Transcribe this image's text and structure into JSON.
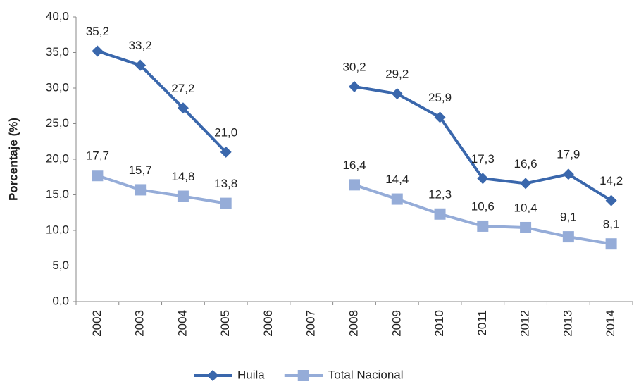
{
  "chart_data": {
    "type": "line",
    "ylabel": "Porcentaje (%)",
    "categories": [
      "2002",
      "2003",
      "2004",
      "2005",
      "2006",
      "2007",
      "2008",
      "2009",
      "2010",
      "2011",
      "2012",
      "2013",
      "2014"
    ],
    "series": [
      {
        "name": "Huila",
        "color": "#3a67ac",
        "marker": "diamond",
        "values": [
          35.2,
          33.2,
          27.2,
          21.0,
          null,
          null,
          30.2,
          29.2,
          25.9,
          17.3,
          16.6,
          17.9,
          14.2
        ],
        "value_labels": [
          "35,2",
          "33,2",
          "27,2",
          "21,0",
          null,
          null,
          "30,2",
          "29,2",
          "25,9",
          "17,3",
          "16,6",
          "17,9",
          "14,2"
        ]
      },
      {
        "name": "Total Nacional",
        "color": "#95acd8",
        "marker": "square",
        "values": [
          17.7,
          15.7,
          14.8,
          13.8,
          null,
          null,
          16.4,
          14.4,
          12.3,
          10.6,
          10.4,
          9.1,
          8.1
        ],
        "value_labels": [
          "17,7",
          "15,7",
          "14,8",
          "13,8",
          null,
          null,
          "16,4",
          "14,4",
          "12,3",
          "10,6",
          "10,4",
          "9,1",
          "8,1"
        ]
      }
    ],
    "ylim": [
      0,
      40
    ],
    "yticks": [
      {
        "value": 0,
        "label": "0,0"
      },
      {
        "value": 5,
        "label": "5,0"
      },
      {
        "value": 10,
        "label": "10,0"
      },
      {
        "value": 15,
        "label": "15,0"
      },
      {
        "value": 20,
        "label": "20,0"
      },
      {
        "value": 25,
        "label": "25,0"
      },
      {
        "value": 30,
        "label": "30,0"
      },
      {
        "value": 35,
        "label": "35,0"
      },
      {
        "value": 40,
        "label": "40,0"
      }
    ],
    "grid": false,
    "legend": "bottom"
  }
}
